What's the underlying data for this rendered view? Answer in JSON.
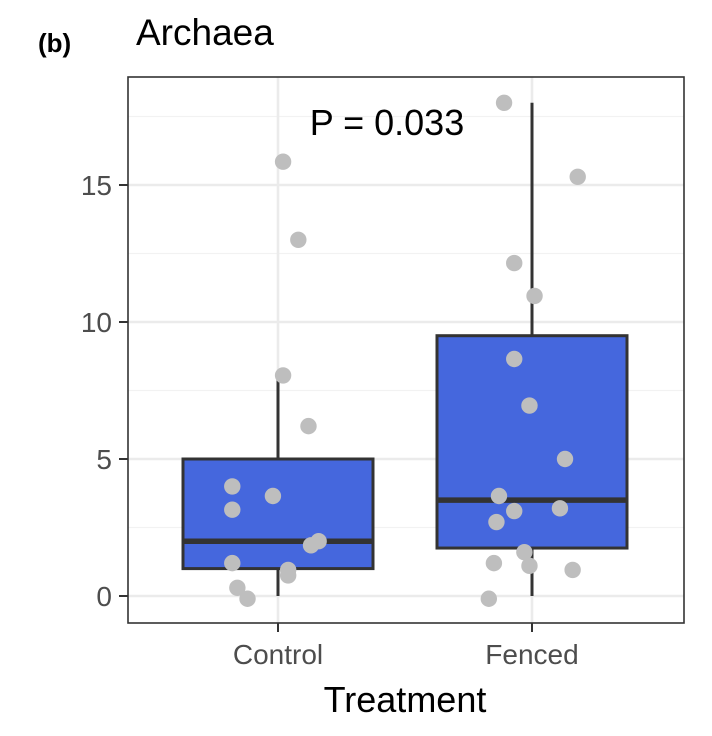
{
  "panel_label": "(b)",
  "chart_data": {
    "type": "box",
    "title": "Archaea",
    "xlabel": "Treatment",
    "ylabel": "",
    "ylim": [
      -1,
      20
    ],
    "y_ticks": [
      0,
      5,
      10,
      15
    ],
    "grid": true,
    "annotation": "P = 0.033",
    "box_fill": "#4567DD",
    "point_color": "#BEBEBE",
    "categories": [
      "Control",
      "Fenced"
    ],
    "boxes": [
      {
        "category": "Control",
        "whisker_low": 0,
        "q1": 1.0,
        "median": 2.0,
        "q3": 5.0,
        "whisker_high": 7.9
      },
      {
        "category": "Fenced",
        "whisker_low": 0,
        "q1": 1.75,
        "median": 3.5,
        "q3": 9.5,
        "whisker_high": 18.0
      }
    ],
    "points": [
      {
        "category": "Control",
        "jitter": 0.02,
        "y": 15.85
      },
      {
        "category": "Control",
        "jitter": 0.08,
        "y": 13.0
      },
      {
        "category": "Control",
        "jitter": 0.02,
        "y": 8.05
      },
      {
        "category": "Control",
        "jitter": 0.12,
        "y": 6.2
      },
      {
        "category": "Control",
        "jitter": -0.18,
        "y": 4.0
      },
      {
        "category": "Control",
        "jitter": -0.02,
        "y": 3.65
      },
      {
        "category": "Control",
        "jitter": -0.18,
        "y": 3.15
      },
      {
        "category": "Control",
        "jitter": 0.16,
        "y": 2.0
      },
      {
        "category": "Control",
        "jitter": 0.13,
        "y": 1.85
      },
      {
        "category": "Control",
        "jitter": -0.18,
        "y": 1.2
      },
      {
        "category": "Control",
        "jitter": 0.04,
        "y": 0.95
      },
      {
        "category": "Control",
        "jitter": 0.04,
        "y": 0.75
      },
      {
        "category": "Control",
        "jitter": -0.16,
        "y": 0.3
      },
      {
        "category": "Control",
        "jitter": -0.12,
        "y": -0.1
      },
      {
        "category": "Fenced",
        "jitter": -0.11,
        "y": 18.0
      },
      {
        "category": "Fenced",
        "jitter": 0.18,
        "y": 15.3
      },
      {
        "category": "Fenced",
        "jitter": -0.07,
        "y": 12.15
      },
      {
        "category": "Fenced",
        "jitter": 0.01,
        "y": 10.95
      },
      {
        "category": "Fenced",
        "jitter": -0.07,
        "y": 8.65
      },
      {
        "category": "Fenced",
        "jitter": -0.01,
        "y": 6.95
      },
      {
        "category": "Fenced",
        "jitter": 0.13,
        "y": 5.0
      },
      {
        "category": "Fenced",
        "jitter": -0.13,
        "y": 3.65
      },
      {
        "category": "Fenced",
        "jitter": 0.11,
        "y": 3.2
      },
      {
        "category": "Fenced",
        "jitter": -0.07,
        "y": 3.1
      },
      {
        "category": "Fenced",
        "jitter": -0.14,
        "y": 2.7
      },
      {
        "category": "Fenced",
        "jitter": -0.03,
        "y": 1.6
      },
      {
        "category": "Fenced",
        "jitter": -0.15,
        "y": 1.2
      },
      {
        "category": "Fenced",
        "jitter": -0.01,
        "y": 1.1
      },
      {
        "category": "Fenced",
        "jitter": 0.16,
        "y": 0.95
      },
      {
        "category": "Fenced",
        "jitter": -0.17,
        "y": -0.1
      }
    ]
  }
}
